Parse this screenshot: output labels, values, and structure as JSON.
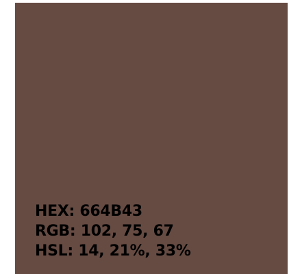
{
  "swatch": {
    "color": "#664B43",
    "hex_text": "HEX: 664B43",
    "rgb_text": "RGB: 102, 75, 67",
    "hsl_text": "HSL: 14, 21%, 33%"
  }
}
